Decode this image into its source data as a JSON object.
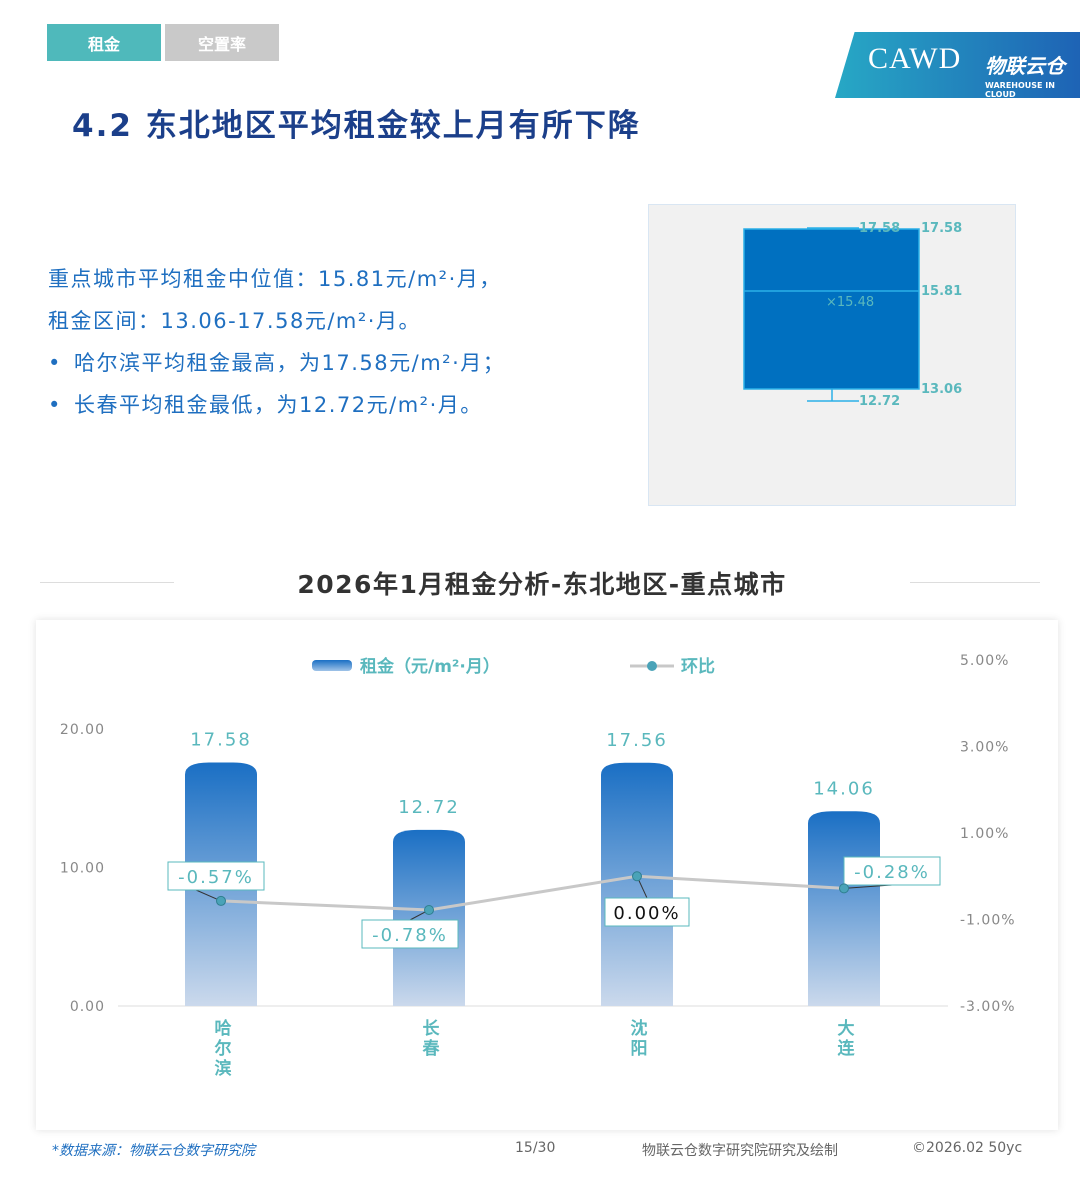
{
  "tabs": [
    {
      "label": "租金",
      "active": true
    },
    {
      "label": "空置率",
      "active": false
    }
  ],
  "logo": {
    "cawd": "CAWD",
    "cn": "物联云仓",
    "en": "WAREHOUSE IN CLOUD"
  },
  "title": "4.2 东北地区平均租金较上月有所下降",
  "desc": {
    "line1": "重点城市平均租金中位值：15.81元/m²·月，",
    "line2": "租金区间：13.06-17.58元/m²·月。",
    "bullet1": "哈尔滨平均租金最高，为17.58元/m²·月；",
    "bullet2": "长春平均租金最低，为12.72元/m²·月。"
  },
  "boxplot": {
    "max": "17.58",
    "q3": "17.58",
    "median": "15.81",
    "mean": "×15.48",
    "q1": "13.06",
    "min": "12.72"
  },
  "chart_title": "2026年1月租金分析-东北地区-重点城市",
  "chart_data": {
    "type": "bar",
    "categories": [
      "哈尔滨",
      "长春",
      "沈阳",
      "大连"
    ],
    "series": [
      {
        "name": "租金（元/m²·月）",
        "type": "bar",
        "axis": "left",
        "values": [
          17.58,
          12.72,
          17.56,
          14.06
        ],
        "labels": [
          "17.58",
          "12.72",
          "17.56",
          "14.06"
        ],
        "color": "#1a6fc4"
      },
      {
        "name": "环比",
        "type": "line",
        "axis": "right",
        "values": [
          -0.57,
          -0.78,
          0.0,
          -0.28
        ],
        "labels": [
          "-0.57%",
          "-0.78%",
          "0.00%",
          "-0.28%"
        ],
        "color": "#c8c8c8"
      }
    ],
    "y_left": {
      "range": [
        0,
        20
      ],
      "ticks": [
        "0.00",
        "10.00",
        "20.00"
      ]
    },
    "y_right": {
      "range": [
        -3,
        5
      ],
      "ticks": [
        "-3.00%",
        "-1.00%",
        "1.00%",
        "3.00%",
        "5.00%"
      ]
    },
    "legend": "top",
    "grid": false
  },
  "footer": {
    "source": "*数据来源：物联云仓数字研究院",
    "page": "15/30",
    "credit": "物联云仓数字研究院研究及绘制",
    "copyright": "©2026.02 50yc"
  }
}
